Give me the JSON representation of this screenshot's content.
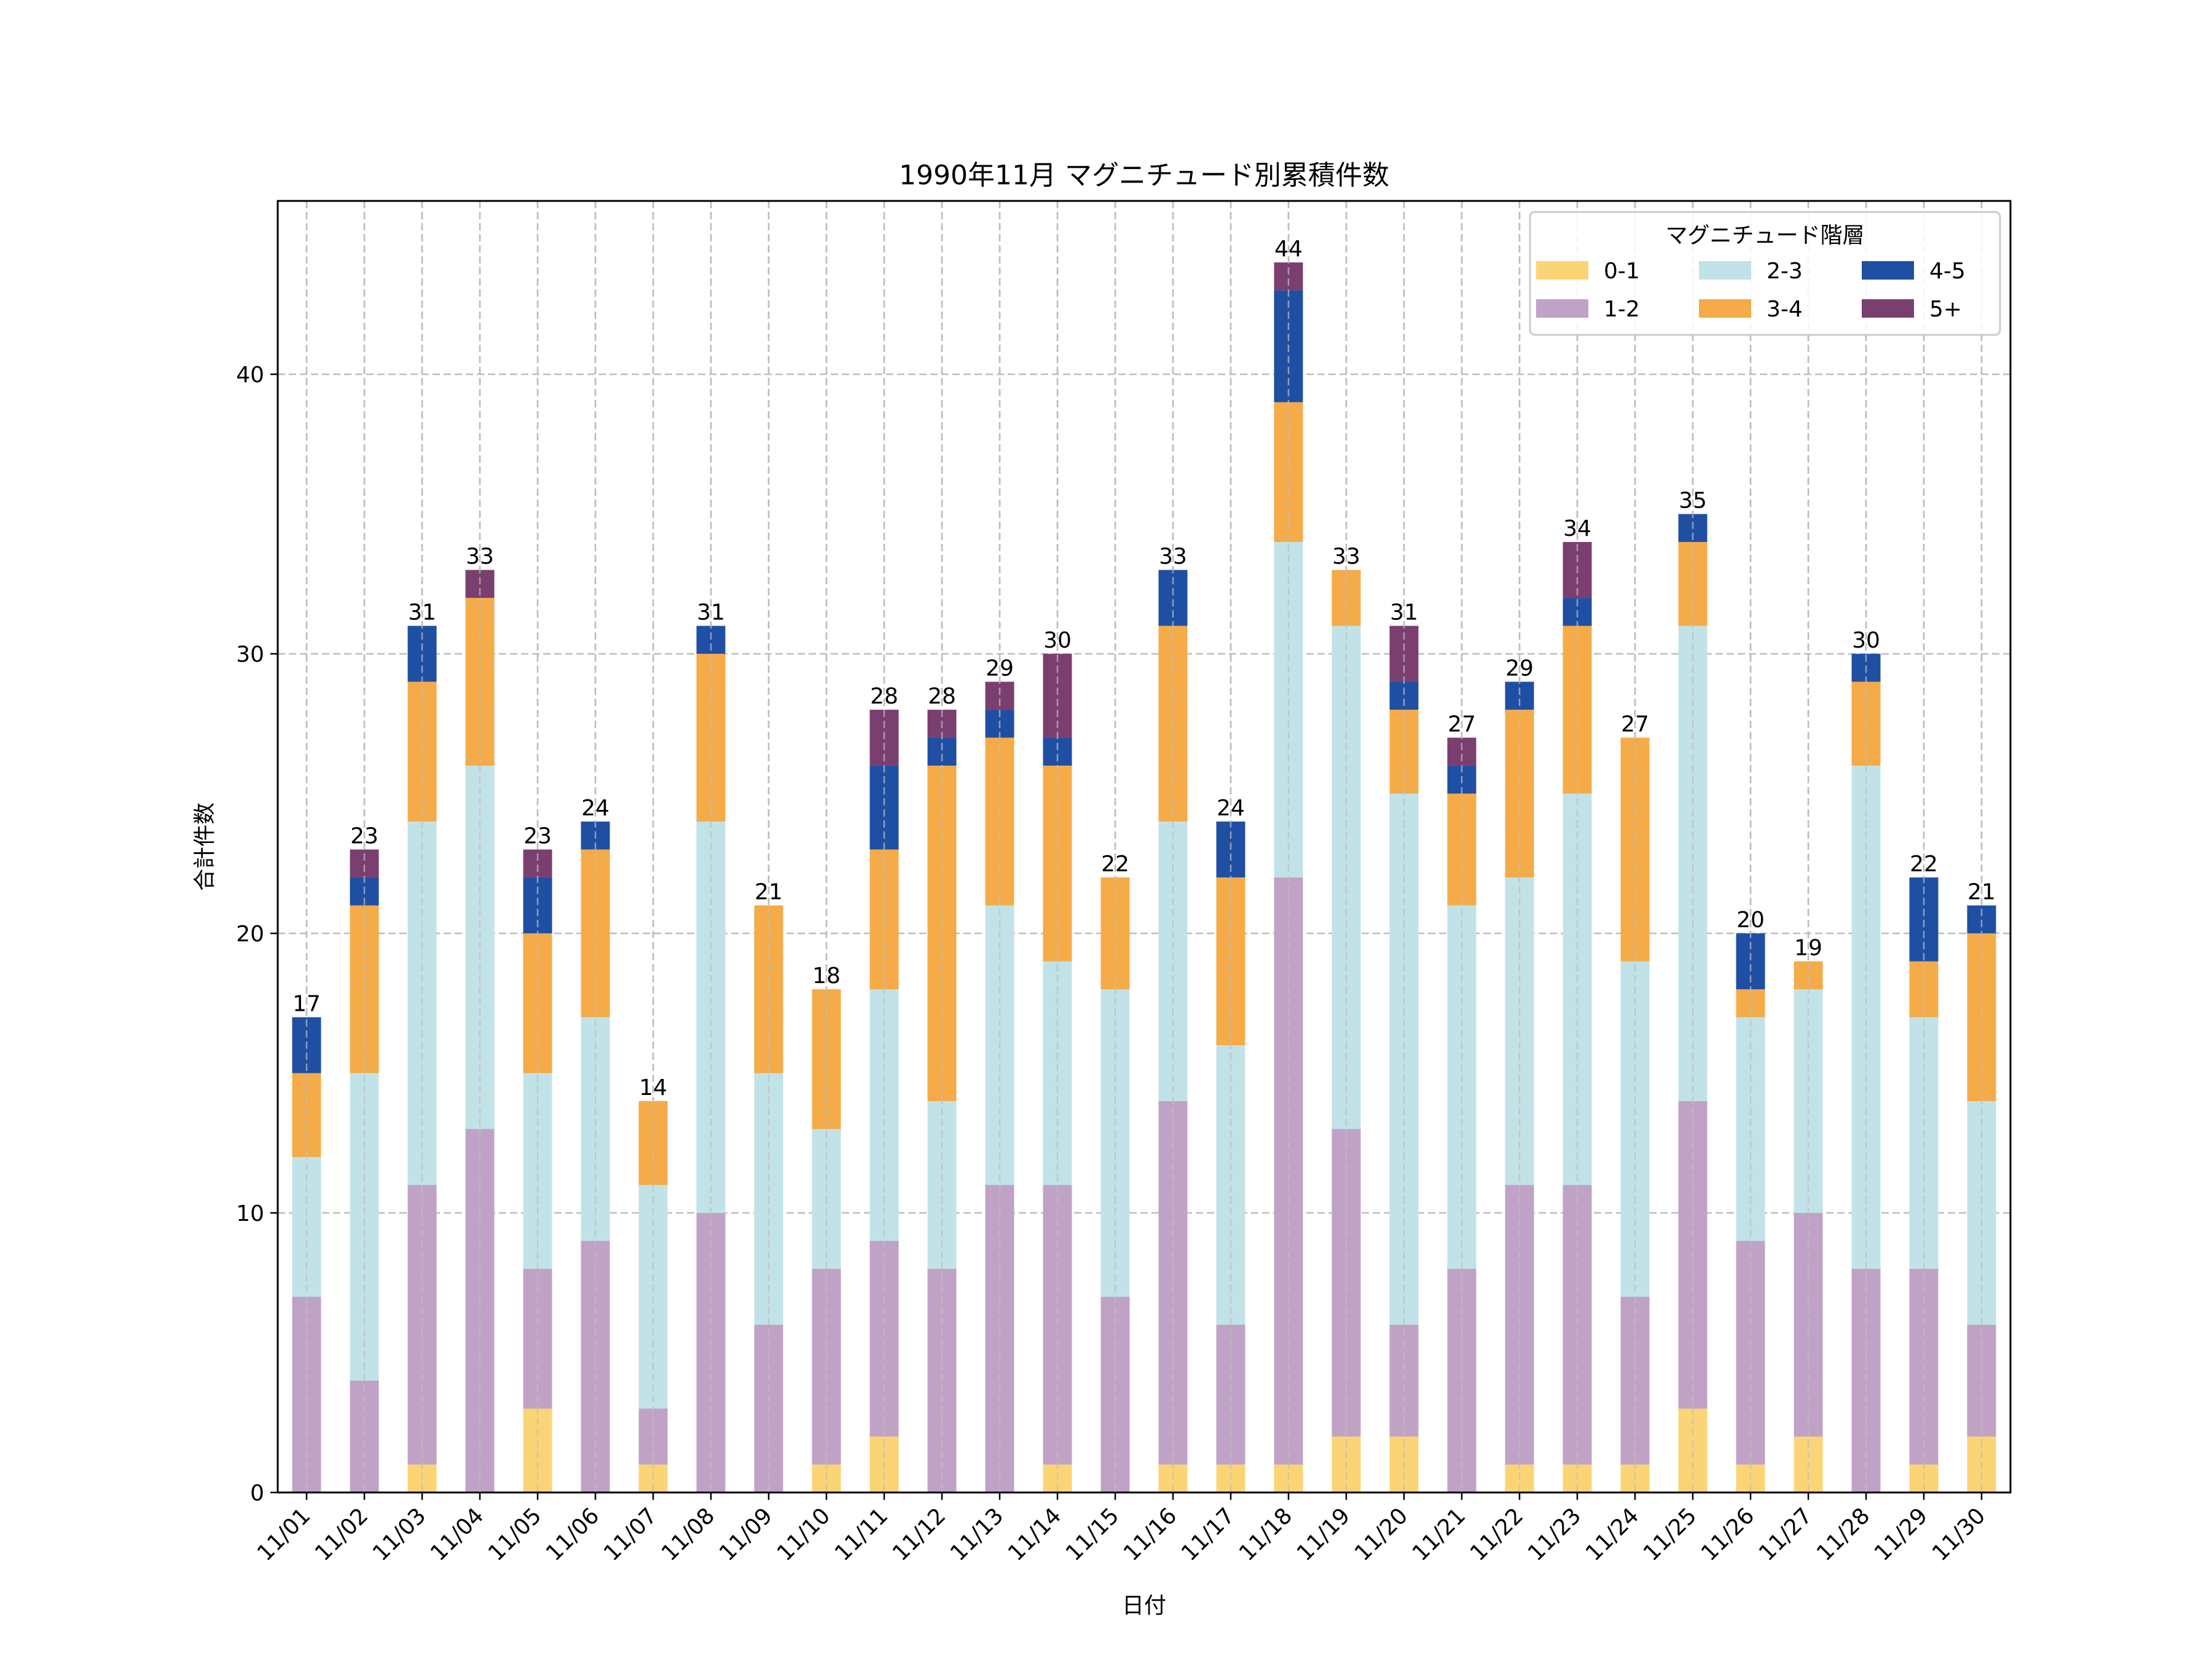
{
  "chart_data": {
    "type": "bar",
    "stacked": true,
    "title": "1990年11月 マグニチュード別累積件数",
    "xlabel": "日付",
    "ylabel": "合計件数",
    "ylim": [
      0,
      46.2
    ],
    "yticks": [
      0,
      10,
      20,
      30,
      40
    ],
    "grid": true,
    "legend": {
      "title": "マグニチュード階層",
      "placement": "top-right",
      "columns": 3
    },
    "categories": [
      "11/01",
      "11/02",
      "11/03",
      "11/04",
      "11/05",
      "11/06",
      "11/07",
      "11/08",
      "11/09",
      "11/10",
      "11/11",
      "11/12",
      "11/13",
      "11/14",
      "11/15",
      "11/16",
      "11/17",
      "11/18",
      "11/19",
      "11/20",
      "11/21",
      "11/22",
      "11/23",
      "11/24",
      "11/25",
      "11/26",
      "11/27",
      "11/28",
      "11/29",
      "11/30"
    ],
    "series": [
      {
        "name": "0-1",
        "color": "#fbd575",
        "values": [
          0,
          0,
          1,
          0,
          3,
          0,
          1,
          0,
          0,
          1,
          2,
          0,
          0,
          1,
          0,
          1,
          1,
          1,
          2,
          2,
          0,
          1,
          1,
          1,
          3,
          1,
          2,
          0,
          1,
          2
        ]
      },
      {
        "name": "1-2",
        "color": "#c0a2c7",
        "values": [
          7,
          4,
          10,
          13,
          5,
          9,
          2,
          10,
          6,
          7,
          7,
          8,
          11,
          10,
          7,
          13,
          5,
          21,
          11,
          4,
          8,
          10,
          10,
          6,
          11,
          8,
          8,
          8,
          7,
          4
        ]
      },
      {
        "name": "2-3",
        "color": "#c1e3e7",
        "values": [
          5,
          11,
          13,
          13,
          7,
          8,
          8,
          14,
          9,
          5,
          9,
          6,
          10,
          8,
          11,
          10,
          10,
          12,
          18,
          19,
          13,
          11,
          14,
          12,
          17,
          8,
          8,
          18,
          9,
          8
        ]
      },
      {
        "name": "3-4",
        "color": "#f5ab48",
        "values": [
          3,
          6,
          5,
          6,
          5,
          6,
          3,
          6,
          6,
          5,
          5,
          12,
          6,
          7,
          4,
          7,
          6,
          5,
          2,
          3,
          4,
          6,
          6,
          8,
          3,
          1,
          1,
          3,
          2,
          6
        ]
      },
      {
        "name": "4-5",
        "color": "#1f4fa3",
        "values": [
          2,
          1,
          2,
          0,
          2,
          1,
          0,
          1,
          0,
          0,
          3,
          1,
          1,
          1,
          0,
          2,
          2,
          4,
          0,
          1,
          1,
          1,
          1,
          0,
          1,
          2,
          0,
          1,
          3,
          1
        ]
      },
      {
        "name": "5+",
        "color": "#7b3f6f",
        "values": [
          0,
          1,
          0,
          1,
          1,
          0,
          0,
          0,
          0,
          0,
          2,
          1,
          1,
          3,
          0,
          0,
          0,
          1,
          0,
          2,
          1,
          0,
          2,
          0,
          0,
          0,
          0,
          0,
          0,
          0
        ]
      }
    ],
    "totals": [
      17,
      23,
      31,
      33,
      23,
      24,
      14,
      31,
      21,
      18,
      28,
      28,
      29,
      30,
      22,
      33,
      24,
      44,
      33,
      31,
      27,
      29,
      34,
      27,
      35,
      20,
      19,
      30,
      22,
      21
    ]
  }
}
